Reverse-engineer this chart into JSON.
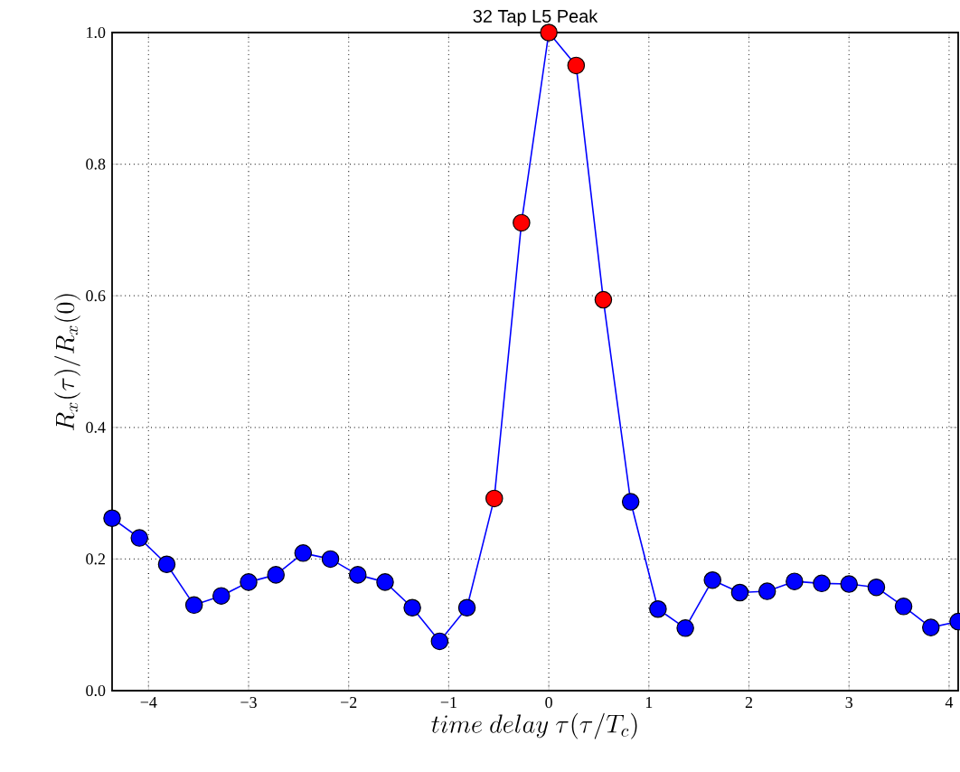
{
  "chart_data": {
    "type": "line",
    "title": "32 Tap L5 Peak",
    "xlabel": "time\\ delay\\ \\tau(\\tau/T_c)",
    "ylabel": "R_x(\\tau)/R_x(0)",
    "x": [
      -4.364,
      -4.091,
      -3.818,
      -3.545,
      -3.273,
      -3,
      -2.727,
      -2.455,
      -2.182,
      -1.909,
      -1.636,
      -1.364,
      -1.091,
      -0.818,
      -0.545,
      -0.273,
      0,
      0.273,
      0.545,
      0.818,
      1.091,
      1.364,
      1.636,
      1.909,
      2.182,
      2.455,
      2.727,
      3,
      3.273,
      3.545,
      3.818,
      4.091
    ],
    "series": [
      {
        "color": "#0000ff",
        "values": [
          0.262,
          0.232,
          0.192,
          0.13,
          0.144,
          0.165,
          0.176,
          0.209,
          0.2,
          0.176,
          0.165,
          0.126,
          0.075,
          0.126,
          0.292,
          0.711,
          1.0,
          0.95,
          0.594,
          0.287,
          0.124,
          0.095,
          0.168,
          0.149,
          0.151,
          0.166,
          0.163,
          0.162,
          0.157,
          0.128,
          0.096,
          0.105
        ],
        "colors": [
          "#0000ff",
          "#0000ff",
          "#0000ff",
          "#0000ff",
          "#0000ff",
          "#0000ff",
          "#0000ff",
          "#0000ff",
          "#0000ff",
          "#0000ff",
          "#0000ff",
          "#0000ff",
          "#0000ff",
          "#0000ff",
          "#ff0000",
          "#ff0000",
          "#ff0000",
          "#ff0000",
          "#ff0000",
          "#0000ff",
          "#0000ff",
          "#0000ff",
          "#0000ff",
          "#0000ff",
          "#0000ff",
          "#0000ff",
          "#0000ff",
          "#0000ff",
          "#0000ff",
          "#0000ff",
          "#0000ff",
          "#0000ff"
        ]
      }
    ],
    "xlim": [
      -4.364,
      4.091
    ],
    "ylim": [
      0,
      1
    ],
    "xticks": [
      {
        "value": -4,
        "label": "−4"
      },
      {
        "value": -3,
        "label": "−3"
      },
      {
        "value": -2,
        "label": "−2"
      },
      {
        "value": -1,
        "label": "−1"
      },
      0,
      1,
      2,
      3,
      4
    ],
    "yticks": [
      {
        "value": 0,
        "label": "0.0"
      },
      {
        "value": 0.2,
        "label": "0.2"
      },
      {
        "value": 0.4,
        "label": "0.4"
      },
      {
        "value": 0.6,
        "label": "0.6"
      },
      {
        "value": 0.8,
        "label": "0.8"
      },
      {
        "value": 1,
        "label": "1.0"
      }
    ],
    "grid": true,
    "marker": "circle",
    "line_style": "solid"
  }
}
